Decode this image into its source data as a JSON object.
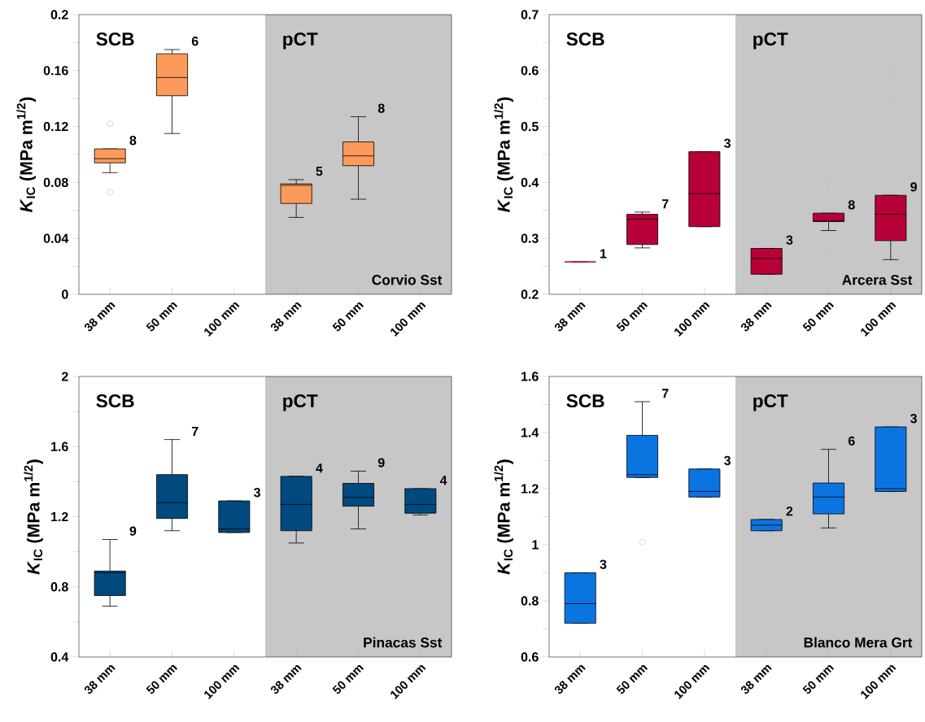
{
  "chart_data": [
    {
      "type": "box",
      "categories": [
        "38 mm",
        "50 mm",
        "100 mm",
        "38 mm",
        "50 mm",
        "100 mm"
      ],
      "ylabel": "*K*$_{IC}$ (MPa m$^{1/2}$)",
      "ylim": [
        0,
        0.2
      ],
      "yticks": [
        0,
        {
          "value": 0.02,
          "label": null
        },
        0.04,
        {
          "value": 0.06,
          "label": null
        },
        0.08,
        {
          "value": 0.1,
          "label": null
        },
        0.12,
        {
          "value": 0.14,
          "label": null
        },
        0.16,
        {
          "value": 0.18,
          "label": null
        },
        0.2
      ],
      "annotations": [
        "SCB",
        "pCT",
        "Corvio Sst",
        "8",
        "6",
        "5",
        "8"
      ],
      "series": [
        {
          "color": "#fb9a5a",
          "boxes": [
            {
              "low": 0.087,
              "q1": 0.094,
              "median": 0.097,
              "q3": 0.104,
              "high": 0.104,
              "outliers": [
                0.122,
                0.073
              ]
            },
            {
              "low": 0.115,
              "q1": 0.142,
              "median": 0.155,
              "q3": 0.172,
              "high": 0.175
            },
            null,
            {
              "low": 0.055,
              "q1": 0.065,
              "median": 0.078,
              "q3": 0.079,
              "high": 0.082
            },
            {
              "low": 0.068,
              "q1": 0.092,
              "median": 0.099,
              "q3": 0.109,
              "high": 0.127
            },
            null
          ]
        }
      ]
    },
    {
      "type": "box",
      "categories": [
        "38 mm",
        "50 mm",
        "100 mm",
        "38 mm",
        "50 mm",
        "100 mm"
      ],
      "ylabel": "*K*$_{IC}$ (MPa m$^{1/2}$)",
      "ylim": [
        0.2,
        0.7
      ],
      "yticks": [
        0.2,
        {
          "value": 0.25,
          "label": null
        },
        0.3,
        {
          "value": 0.35,
          "label": null
        },
        0.4,
        {
          "value": 0.45,
          "label": null
        },
        0.5,
        {
          "value": 0.55,
          "label": null
        },
        0.6,
        {
          "value": 0.65,
          "label": null
        },
        0.7
      ],
      "annotations": [
        "SCB",
        "pCT",
        "Arcera Sst",
        "1",
        "7",
        "3",
        "3",
        "8",
        "9"
      ],
      "series": [
        {
          "color": "#b80038",
          "boxes": [
            {
              "low": 0.258,
              "q1": 0.258,
              "median": 0.258,
              "q3": 0.258,
              "high": 0.258
            },
            {
              "low": 0.283,
              "q1": 0.289,
              "median": 0.334,
              "q3": 0.343,
              "high": 0.347
            },
            {
              "low": 0.321,
              "q1": 0.321,
              "median": 0.38,
              "q3": 0.455,
              "high": 0.455
            },
            {
              "low": 0.236,
              "q1": 0.236,
              "median": 0.264,
              "q3": 0.282,
              "high": 0.282
            },
            {
              "low": 0.314,
              "q1": 0.33,
              "median": 0.331,
              "q3": 0.345,
              "high": 0.345,
              "outliers": [
                0.401,
                0.277
              ]
            },
            {
              "low": 0.262,
              "q1": 0.296,
              "median": 0.343,
              "q3": 0.377,
              "high": 0.377,
              "outliers": [
                0.601,
                0.546
              ]
            }
          ]
        }
      ]
    },
    {
      "type": "box",
      "categories": [
        "38 mm",
        "50 mm",
        "100 mm",
        "38 mm",
        "50 mm",
        "100 mm"
      ],
      "ylabel": "*K*$_{IC}$ (MPa m$^{1/2}$)",
      "ylim": [
        0.4,
        2
      ],
      "yticks": [
        0.4,
        {
          "value": 0.6,
          "label": null
        },
        0.8,
        {
          "value": 1.0,
          "label": null
        },
        1.2,
        {
          "value": 1.4,
          "label": null
        },
        1.6,
        {
          "value": 1.8,
          "label": null
        },
        2
      ],
      "annotations": [
        "SCB",
        "pCT",
        "Pinacas Sst",
        "9",
        "7",
        "3",
        "4",
        "9",
        "4"
      ],
      "series": [
        {
          "color": "#004a7f",
          "boxes": [
            {
              "low": 0.69,
              "q1": 0.75,
              "median": 0.88,
              "q3": 0.89,
              "high": 1.07
            },
            {
              "low": 1.12,
              "q1": 1.19,
              "median": 1.28,
              "q3": 1.44,
              "high": 1.64
            },
            {
              "low": 1.11,
              "q1": 1.11,
              "median": 1.13,
              "q3": 1.29,
              "high": 1.29
            },
            {
              "low": 1.05,
              "q1": 1.12,
              "median": 1.27,
              "q3": 1.43,
              "high": 1.43
            },
            {
              "low": 1.13,
              "q1": 1.26,
              "median": 1.31,
              "q3": 1.39,
              "high": 1.46
            },
            {
              "low": 1.21,
              "q1": 1.22,
              "median": 1.27,
              "q3": 1.36,
              "high": 1.36
            }
          ]
        }
      ]
    },
    {
      "type": "box",
      "categories": [
        "38 mm",
        "50 mm",
        "100 mm",
        "38 mm",
        "50 mm",
        "100 mm"
      ],
      "ylabel": "*K*$_{IC}$ (MPa m$^{1/2}$)",
      "ylim": [
        0.6,
        1.6
      ],
      "yticks": [
        0.6,
        {
          "value": 0.7,
          "label": null
        },
        0.8,
        {
          "value": 0.9,
          "label": null
        },
        1,
        {
          "value": 1.1,
          "label": null
        },
        1.2,
        {
          "value": 1.3,
          "label": null
        },
        1.4,
        {
          "value": 1.5,
          "label": null
        },
        1.6
      ],
      "annotations": [
        "SCB",
        "pCT",
        "Blanco Mera Grt",
        "3",
        "7",
        "3",
        "2",
        "6",
        "3"
      ],
      "series": [
        {
          "color": "#0a75e0",
          "boxes": [
            {
              "low": 0.72,
              "q1": 0.72,
              "median": 0.79,
              "q3": 0.9,
              "high": 0.9
            },
            {
              "low": 1.24,
              "q1": 1.24,
              "median": 1.25,
              "q3": 1.39,
              "high": 1.51,
              "outliers": [
                1.01
              ]
            },
            {
              "low": 1.17,
              "q1": 1.17,
              "median": 1.19,
              "q3": 1.27,
              "high": 1.27
            },
            {
              "low": 1.05,
              "q1": 1.05,
              "median": 1.07,
              "q3": 1.09,
              "high": 1.09
            },
            {
              "low": 1.06,
              "q1": 1.11,
              "median": 1.17,
              "q3": 1.22,
              "high": 1.34
            },
            {
              "low": 1.19,
              "q1": 1.19,
              "median": 1.2,
              "q3": 1.42,
              "high": 1.42
            }
          ]
        }
      ]
    }
  ]
}
